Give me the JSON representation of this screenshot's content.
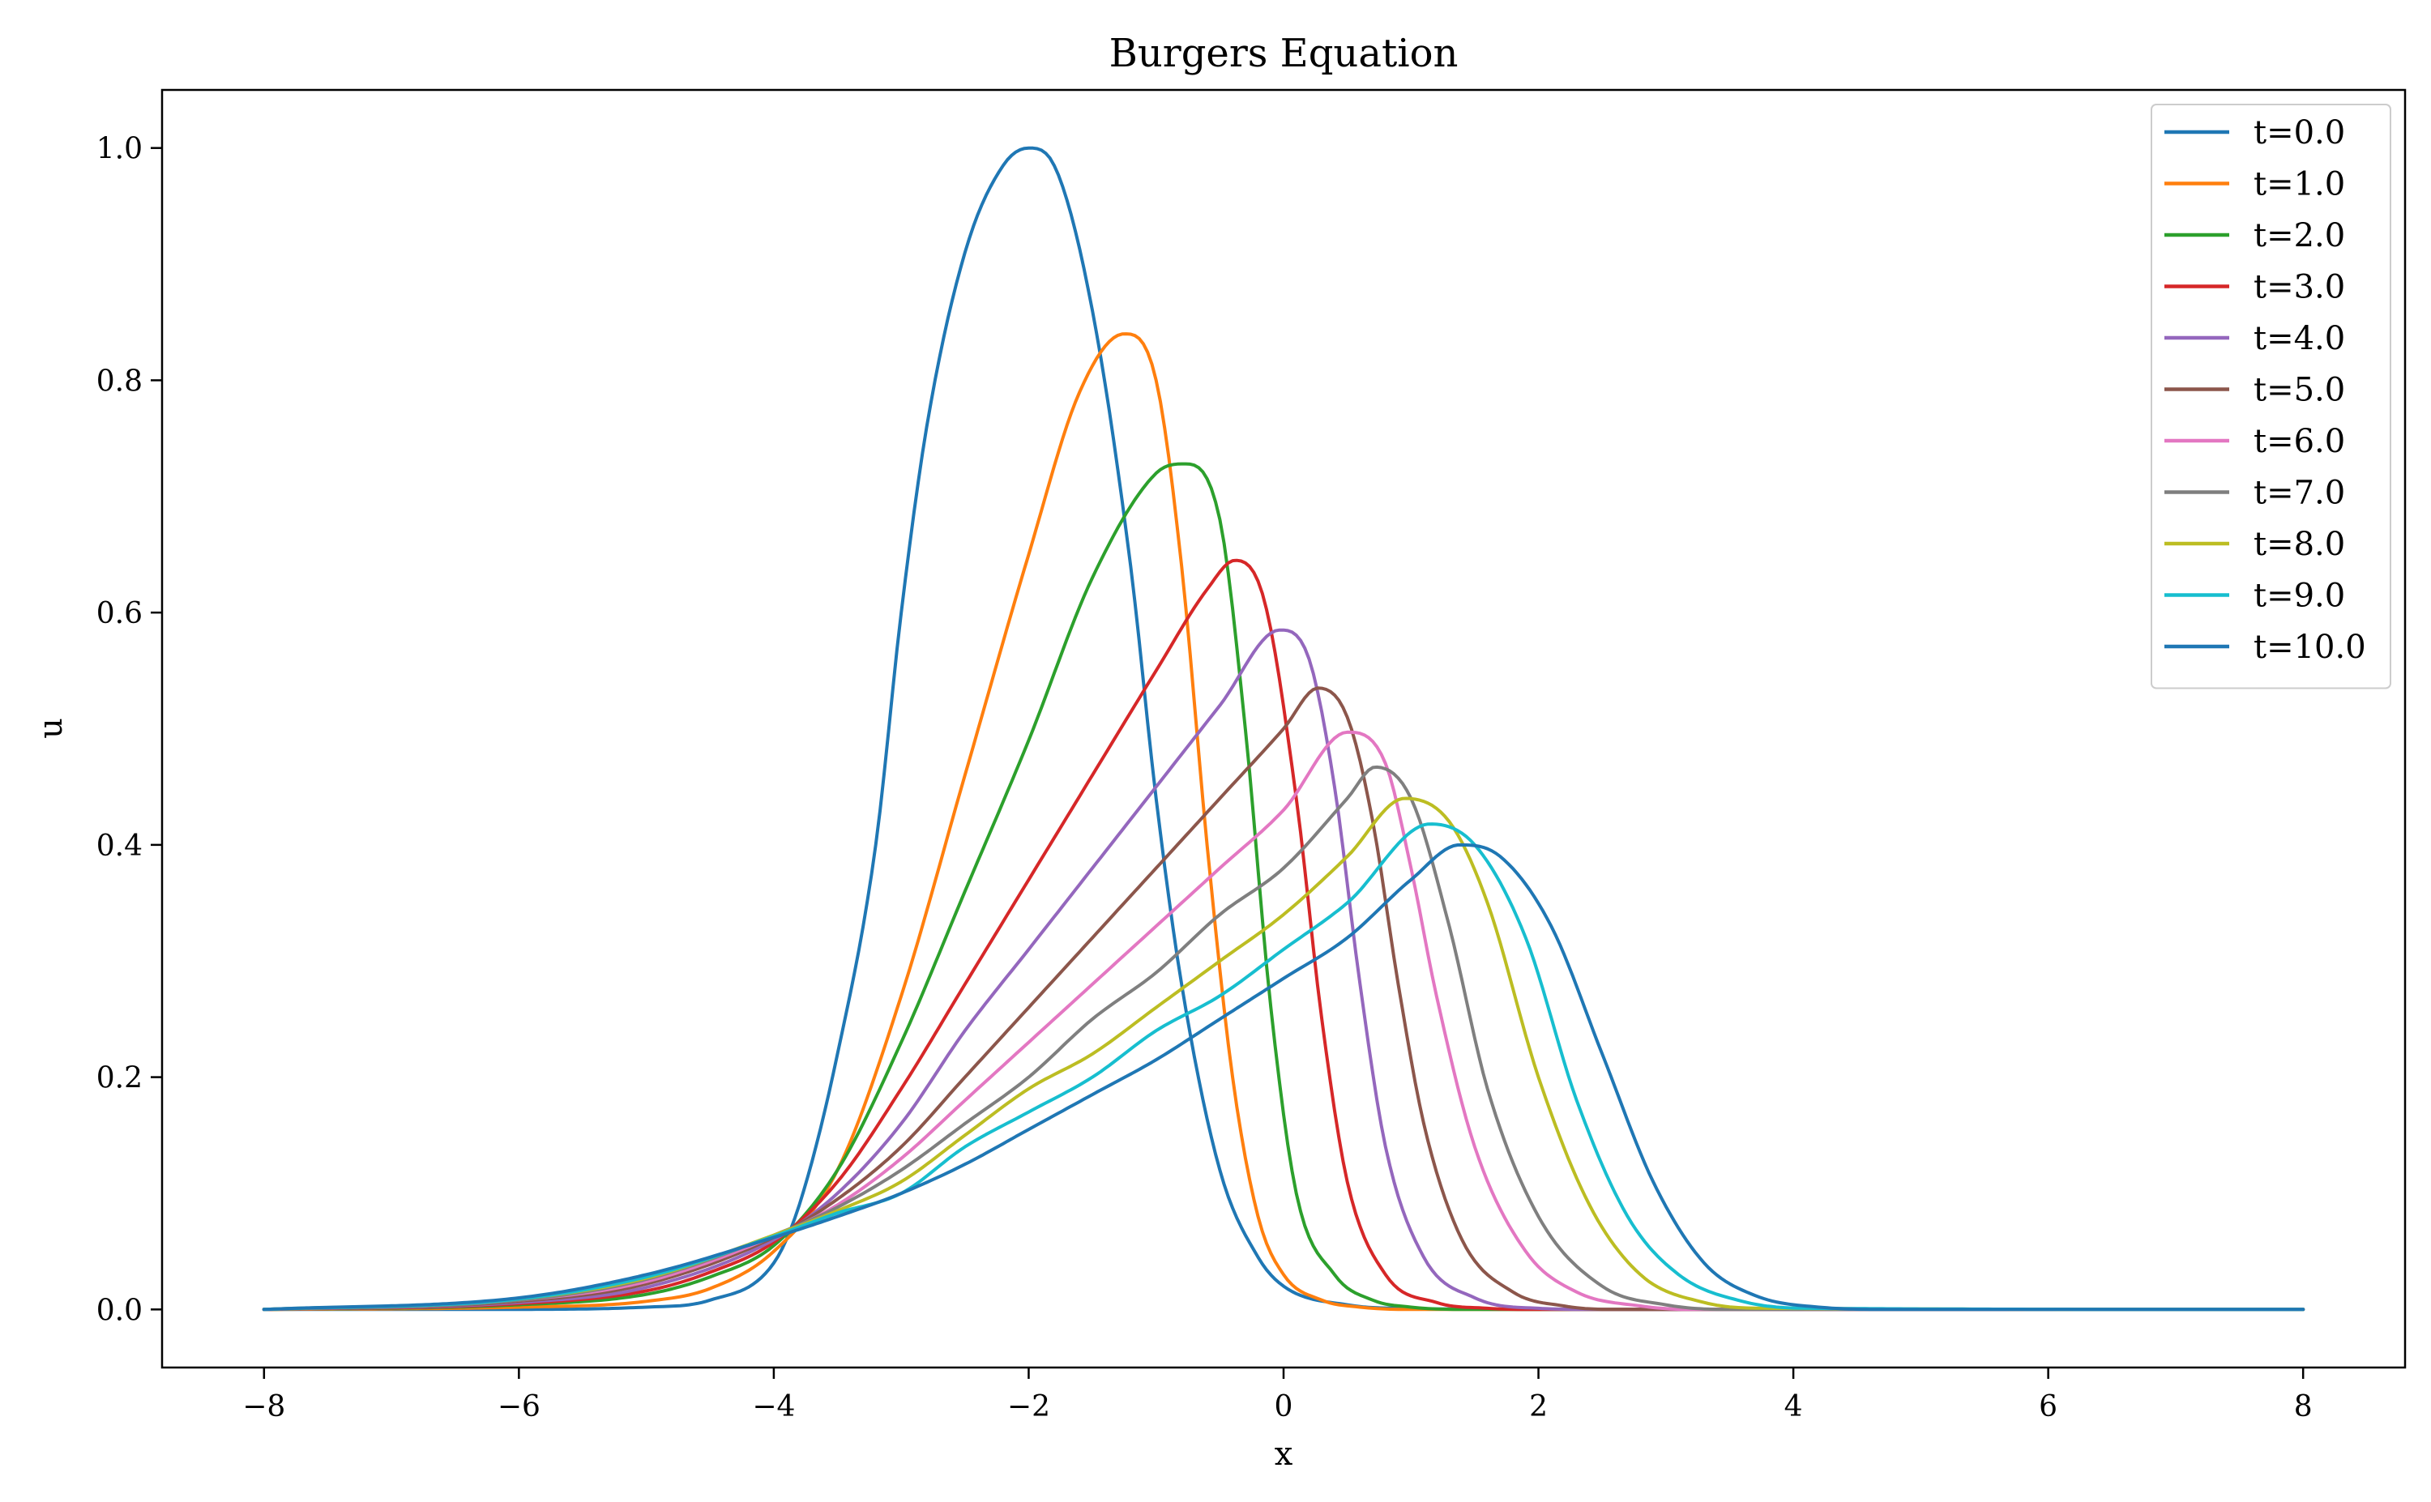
{
  "chart_data": {
    "type": "line",
    "title": "Burgers Equation",
    "xlabel": "x",
    "ylabel": "u",
    "xlim": [
      -8.8,
      8.8
    ],
    "ylim": [
      -0.05,
      1.05
    ],
    "x_ticks": [
      -8,
      -6,
      -4,
      -2,
      0,
      2,
      4,
      6,
      8
    ],
    "x_tick_labels": [
      "−8",
      "−6",
      "−4",
      "−2",
      "0",
      "2",
      "4",
      "6",
      "8"
    ],
    "y_ticks": [
      0.0,
      0.2,
      0.4,
      0.6,
      0.8,
      1.0
    ],
    "y_tick_labels": [
      "0.0",
      "0.2",
      "0.4",
      "0.6",
      "0.8",
      "1.0"
    ],
    "grid": false,
    "legend_position": "top-right",
    "series": [
      {
        "name": "t=0.0",
        "color": "#1f77b4",
        "x": [
          -8,
          -6,
          -5,
          -4.5,
          -4,
          -3.8,
          -3.5,
          -3.2,
          -3,
          -2.8,
          -2.5,
          -2.2,
          -2,
          -1.8,
          -1.5,
          -1.2,
          -1,
          -0.8,
          -0.5,
          -0.2,
          0,
          0.5,
          1,
          2,
          4,
          8
        ],
        "y": [
          0,
          0.0001,
          0.002,
          0.008,
          0.04,
          0.09,
          0.22,
          0.4,
          0.6,
          0.76,
          0.91,
          0.985,
          1.0,
          0.985,
          0.86,
          0.64,
          0.44,
          0.28,
          0.12,
          0.045,
          0.02,
          0.004,
          0.0008,
          0.0001,
          0,
          0
        ]
      },
      {
        "name": "t=1.0",
        "color": "#ff7f0e",
        "x": [
          -8,
          -6,
          -5,
          -4.5,
          -4,
          -3.5,
          -3,
          -2.5,
          -2,
          -1.6,
          -1.25,
          -1,
          -0.8,
          -0.6,
          -0.4,
          -0.2,
          0,
          0.3,
          0.6,
          1,
          2,
          8
        ],
        "y": [
          0,
          0.002,
          0.007,
          0.018,
          0.05,
          0.12,
          0.27,
          0.46,
          0.65,
          0.79,
          0.84,
          0.8,
          0.64,
          0.4,
          0.2,
          0.08,
          0.03,
          0.008,
          0.002,
          0,
          0,
          0
        ]
      },
      {
        "name": "t=2.0",
        "color": "#2ca02c",
        "x": [
          -8,
          -6,
          -5,
          -4.5,
          -4,
          -3.5,
          -3,
          -2.5,
          -2,
          -1.5,
          -1,
          -0.78,
          -0.5,
          -0.3,
          -0.1,
          0.1,
          0.4,
          0.7,
          1,
          1.5,
          8
        ],
        "y": [
          0,
          0.004,
          0.013,
          0.028,
          0.055,
          0.12,
          0.23,
          0.36,
          0.49,
          0.63,
          0.72,
          0.728,
          0.68,
          0.5,
          0.26,
          0.1,
          0.03,
          0.008,
          0.002,
          0,
          0
        ]
      },
      {
        "name": "t=3.0",
        "color": "#d62728",
        "x": [
          -8,
          -6,
          -5,
          -4.5,
          -4,
          -3.5,
          -3,
          -2.5,
          -2,
          -1.5,
          -1,
          -0.6,
          -0.38,
          -0.15,
          0.1,
          0.3,
          0.5,
          0.8,
          1.2,
          1.6,
          2,
          8
        ],
        "y": [
          0,
          0.005,
          0.016,
          0.032,
          0.058,
          0.11,
          0.19,
          0.28,
          0.37,
          0.46,
          0.55,
          0.62,
          0.645,
          0.61,
          0.44,
          0.25,
          0.11,
          0.03,
          0.006,
          0.001,
          0,
          0
        ]
      },
      {
        "name": "t=4.0",
        "color": "#9467bd",
        "x": [
          -8,
          -6,
          -5,
          -4,
          -3.5,
          -3,
          -2.5,
          -2,
          -1.5,
          -1,
          -0.5,
          -0.03,
          0.2,
          0.4,
          0.6,
          0.8,
          1.1,
          1.5,
          2,
          2.5,
          8
        ],
        "y": [
          0,
          0.006,
          0.019,
          0.06,
          0.1,
          0.16,
          0.24,
          0.31,
          0.38,
          0.45,
          0.52,
          0.585,
          0.56,
          0.45,
          0.28,
          0.14,
          0.045,
          0.01,
          0.001,
          0,
          0
        ]
      },
      {
        "name": "t=5.0",
        "color": "#8c564b",
        "x": [
          -8,
          -6,
          -5,
          -4,
          -3.5,
          -3,
          -2.5,
          -2,
          -1.5,
          -1,
          -0.5,
          0,
          0.27,
          0.5,
          0.7,
          0.9,
          1.1,
          1.4,
          1.8,
          2.2,
          2.6,
          8
        ],
        "y": [
          0,
          0.007,
          0.022,
          0.062,
          0.095,
          0.14,
          0.2,
          0.26,
          0.32,
          0.38,
          0.44,
          0.5,
          0.535,
          0.51,
          0.42,
          0.28,
          0.16,
          0.06,
          0.015,
          0.003,
          0,
          0
        ]
      },
      {
        "name": "t=6.0",
        "color": "#e377c2",
        "x": [
          -8,
          -6,
          -5,
          -4,
          -3.5,
          -3,
          -2.5,
          -2,
          -1.5,
          -1,
          -0.5,
          0,
          0.5,
          0.8,
          1,
          1.2,
          1.5,
          1.9,
          2.3,
          2.8,
          3.2,
          8
        ],
        "y": [
          0,
          0.008,
          0.024,
          0.063,
          0.09,
          0.13,
          0.18,
          0.23,
          0.28,
          0.33,
          0.38,
          0.43,
          0.497,
          0.47,
          0.38,
          0.27,
          0.14,
          0.05,
          0.015,
          0.003,
          0,
          0
        ]
      },
      {
        "name": "t=7.0",
        "color": "#7f7f7f",
        "x": [
          -8,
          -6,
          -5,
          -4,
          -3.5,
          -3,
          -2.5,
          -2,
          -1.5,
          -1,
          -0.5,
          0,
          0.5,
          0.72,
          1,
          1.3,
          1.6,
          2,
          2.5,
          3,
          3.5,
          8
        ],
        "y": [
          0,
          0.008,
          0.026,
          0.064,
          0.088,
          0.12,
          0.16,
          0.2,
          0.25,
          0.29,
          0.34,
          0.38,
          0.44,
          0.467,
          0.44,
          0.33,
          0.19,
          0.08,
          0.02,
          0.004,
          0,
          0
        ]
      },
      {
        "name": "t=8.0",
        "color": "#bcbd22",
        "x": [
          -8,
          -6,
          -5,
          -4,
          -3.5,
          -3,
          -2.5,
          -2,
          -1.5,
          -1,
          -0.5,
          0,
          0.5,
          0.95,
          1.3,
          1.6,
          2,
          2.4,
          2.8,
          3.3,
          3.8,
          8
        ],
        "y": [
          0,
          0.009,
          0.027,
          0.064,
          0.085,
          0.11,
          0.15,
          0.19,
          0.22,
          0.26,
          0.3,
          0.34,
          0.39,
          0.44,
          0.42,
          0.35,
          0.2,
          0.09,
          0.03,
          0.006,
          0.001,
          0
        ]
      },
      {
        "name": "t=9.0",
        "color": "#17becf",
        "x": [
          -8,
          -6,
          -5,
          -4,
          -3.5,
          -3,
          -2.5,
          -2,
          -1.5,
          -1,
          -0.5,
          0,
          0.5,
          1.15,
          1.5,
          1.9,
          2.3,
          2.7,
          3.1,
          3.6,
          4.1,
          8
        ],
        "y": [
          0,
          0.009,
          0.028,
          0.063,
          0.083,
          0.1,
          0.14,
          0.17,
          0.2,
          0.24,
          0.27,
          0.31,
          0.35,
          0.418,
          0.4,
          0.32,
          0.18,
          0.08,
          0.03,
          0.007,
          0.001,
          0
        ]
      },
      {
        "name": "t=10.0",
        "color": "#1f77b4",
        "x": [
          -8,
          -6,
          -5,
          -4,
          -3.5,
          -3,
          -2.5,
          -2,
          -1.5,
          -1,
          -0.5,
          0,
          0.5,
          1,
          1.38,
          1.7,
          2.1,
          2.5,
          2.9,
          3.3,
          3.7,
          4.2,
          4.8,
          8
        ],
        "y": [
          0,
          0.01,
          0.03,
          0.062,
          0.08,
          0.1,
          0.125,
          0.155,
          0.185,
          0.215,
          0.25,
          0.285,
          0.32,
          0.37,
          0.4,
          0.39,
          0.33,
          0.22,
          0.11,
          0.04,
          0.012,
          0.002,
          0,
          0
        ]
      }
    ]
  }
}
